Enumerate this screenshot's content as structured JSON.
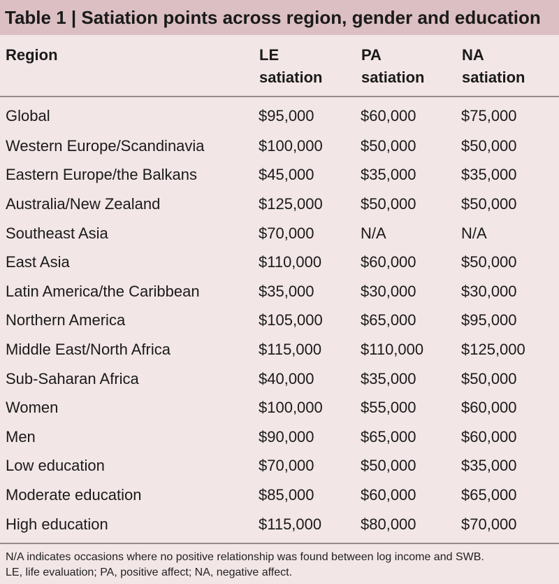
{
  "title": "Table 1 | Satiation points across region, gender and education",
  "columns": {
    "region": "Region",
    "le_line1": "LE",
    "le_line2": "satiation",
    "pa_line1": "PA",
    "pa_line2": "satiation",
    "na_line1": "NA",
    "na_line2": "satiation"
  },
  "rows": [
    {
      "region": "Global",
      "le": "$95,000",
      "pa": "$60,000",
      "na": "$75,000"
    },
    {
      "region": "Western Europe/Scandinavia",
      "le": "$100,000",
      "pa": "$50,000",
      "na": "$50,000"
    },
    {
      "region": "Eastern Europe/the Balkans",
      "le": "$45,000",
      "pa": "$35,000",
      "na": "$35,000"
    },
    {
      "region": "Australia/New Zealand",
      "le": "$125,000",
      "pa": "$50,000",
      "na": "$50,000"
    },
    {
      "region": "Southeast Asia",
      "le": "$70,000",
      "pa": "N/A",
      "na": "N/A"
    },
    {
      "region": "East Asia",
      "le": "$110,000",
      "pa": "$60,000",
      "na": "$50,000"
    },
    {
      "region": "Latin America/the Caribbean",
      "le": "$35,000",
      "pa": "$30,000",
      "na": "$30,000"
    },
    {
      "region": "Northern America",
      "le": "$105,000",
      "pa": "$65,000",
      "na": "$95,000"
    },
    {
      "region": "Middle East/North Africa",
      "le": "$115,000",
      "pa": "$110,000",
      "na": "$125,000"
    },
    {
      "region": "Sub-Saharan Africa",
      "le": "$40,000",
      "pa": "$35,000",
      "na": "$50,000"
    },
    {
      "region": "Women",
      "le": "$100,000",
      "pa": "$55,000",
      "na": "$60,000"
    },
    {
      "region": "Men",
      "le": "$90,000",
      "pa": "$65,000",
      "na": "$60,000"
    },
    {
      "region": "Low education",
      "le": "$70,000",
      "pa": "$50,000",
      "na": "$35,000"
    },
    {
      "region": "Moderate education",
      "le": "$85,000",
      "pa": "$60,000",
      "na": "$65,000"
    },
    {
      "region": "High education",
      "le": "$115,000",
      "pa": "$80,000",
      "na": "$70,000"
    }
  ],
  "footnote": {
    "line1": "N/A indicates occasions where no positive relationship was found between log income and SWB.",
    "line2": "LE, life evaluation; PA, positive affect; NA, negative affect."
  },
  "colors": {
    "background": "#f3e6e7",
    "title_bar": "#dcbfc3",
    "rule": "#9a8a8c"
  }
}
